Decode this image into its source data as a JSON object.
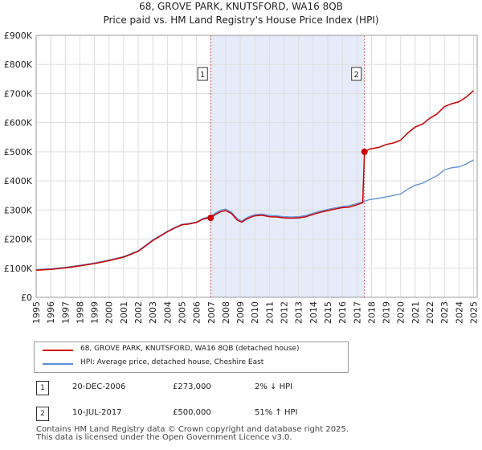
{
  "chart_data": {
    "type": "line",
    "title": "68, GROVE PARK, KNUTSFORD, WA16 8QB",
    "subtitle": "Price paid vs. HM Land Registry's House Price Index (HPI)",
    "xlabel": "",
    "ylabel": "",
    "xlim": [
      1995,
      2025.25
    ],
    "ylim": [
      0,
      900000
    ],
    "yticks": [
      0,
      100000,
      200000,
      300000,
      400000,
      500000,
      600000,
      700000,
      800000,
      900000
    ],
    "ytick_labels": [
      "£0",
      "£100K",
      "£200K",
      "£300K",
      "£400K",
      "£500K",
      "£600K",
      "£700K",
      "£800K",
      "£900K"
    ],
    "xticks": [
      "1995",
      "1996",
      "1997",
      "1998",
      "1999",
      "2000",
      "2001",
      "2002",
      "2003",
      "2004",
      "2005",
      "2006",
      "2007",
      "2008",
      "2009",
      "2010",
      "2011",
      "2012",
      "2013",
      "2014",
      "2015",
      "2016",
      "2017",
      "2018",
      "2019",
      "2020",
      "2021",
      "2022",
      "2023",
      "2024",
      "2025"
    ],
    "shaded_period": [
      2006.97,
      2017.52
    ],
    "series": [
      {
        "name": "68, GROVE PARK, KNUTSFORD, WA16 8QB (detached house)",
        "color": "#cc0000",
        "x": [
          1995.0,
          1996.0,
          1997.0,
          1998.0,
          1999.0,
          2000.0,
          2001.0,
          2002.0,
          2003.0,
          2003.5,
          2004.0,
          2004.5,
          2005.0,
          2005.5,
          2006.0,
          2006.5,
          2006.97,
          2007.3,
          2007.7,
          2008.0,
          2008.4,
          2008.8,
          2009.1,
          2009.4,
          2009.7,
          2010.0,
          2010.5,
          2011.0,
          2011.5,
          2012.0,
          2012.5,
          2013.0,
          2013.5,
          2014.0,
          2014.5,
          2015.0,
          2015.5,
          2016.0,
          2016.5,
          2017.0,
          2017.4,
          2017.52,
          2017.9,
          2018.5,
          2019.0,
          2019.5,
          2020.0,
          2020.5,
          2021.0,
          2021.5,
          2022.0,
          2022.5,
          2023.0,
          2023.5,
          2024.0,
          2024.5,
          2025.0
        ],
        "y": [
          93000,
          96000,
          101000,
          108000,
          116000,
          126000,
          138000,
          158000,
          195000,
          210000,
          225000,
          238000,
          249000,
          252000,
          257000,
          270000,
          273000,
          285000,
          295000,
          298000,
          288000,
          265000,
          258000,
          268000,
          275000,
          280000,
          282000,
          277000,
          276000,
          273000,
          272000,
          273000,
          277000,
          285000,
          292000,
          298000,
          303000,
          308000,
          310000,
          318000,
          325000,
          500000,
          510000,
          515000,
          525000,
          530000,
          540000,
          565000,
          585000,
          595000,
          615000,
          630000,
          655000,
          665000,
          672000,
          688000,
          710000
        ]
      },
      {
        "name": "HPI: Average price, detached house, Cheshire East",
        "color": "#5b8fd6",
        "x": [
          1995.0,
          1996.0,
          1997.0,
          1998.0,
          1999.0,
          2000.0,
          2001.0,
          2002.0,
          2003.0,
          2003.5,
          2004.0,
          2004.5,
          2005.0,
          2005.5,
          2006.0,
          2006.5,
          2006.97,
          2007.3,
          2007.7,
          2008.0,
          2008.4,
          2008.8,
          2009.1,
          2009.4,
          2009.7,
          2010.0,
          2010.5,
          2011.0,
          2011.5,
          2012.0,
          2012.5,
          2013.0,
          2013.5,
          2014.0,
          2014.5,
          2015.0,
          2015.5,
          2016.0,
          2016.5,
          2017.0,
          2017.4,
          2017.52,
          2017.9,
          2018.5,
          2019.0,
          2019.5,
          2020.0,
          2020.5,
          2021.0,
          2021.5,
          2022.0,
          2022.5,
          2023.0,
          2023.5,
          2024.0,
          2024.5,
          2025.0
        ],
        "y": [
          95000,
          98000,
          103000,
          110000,
          118000,
          128000,
          140000,
          160000,
          197000,
          212000,
          227000,
          240000,
          251000,
          254000,
          259000,
          272000,
          278000,
          290000,
          300000,
          303000,
          292000,
          270000,
          262000,
          272000,
          279000,
          284000,
          286000,
          281000,
          280000,
          277000,
          276000,
          277000,
          281000,
          289000,
          296000,
          302000,
          307000,
          312000,
          315000,
          322000,
          328000,
          330000,
          336000,
          340000,
          345000,
          350000,
          355000,
          372000,
          385000,
          392000,
          405000,
          418000,
          438000,
          445000,
          448000,
          458000,
          472000
        ]
      }
    ],
    "annotations": [
      {
        "label": "1",
        "x": 2006.97,
        "y": 273000
      },
      {
        "label": "2",
        "x": 2017.52,
        "y": 500000
      }
    ]
  },
  "legend": {
    "property_label": "68, GROVE PARK, KNUTSFORD, WA16 8QB (detached house)",
    "hpi_label": "HPI: Average price, detached house, Cheshire East"
  },
  "transactions": [
    {
      "num": "1",
      "date": "20-DEC-2006",
      "price": "£273,000",
      "hpi": "2% ↓ HPI"
    },
    {
      "num": "2",
      "date": "10-JUL-2017",
      "price": "£500,000",
      "hpi": "51% ↑ HPI"
    }
  ],
  "footer": {
    "line1": "Contains HM Land Registry data © Crown copyright and database right 2025.",
    "line2": "This data is licensed under the Open Government Licence v3.0."
  },
  "colors": {
    "property": "#cc0000",
    "hpi": "#5b8fd6",
    "shade": "#e6ebfa",
    "grid": "#dddddd"
  }
}
